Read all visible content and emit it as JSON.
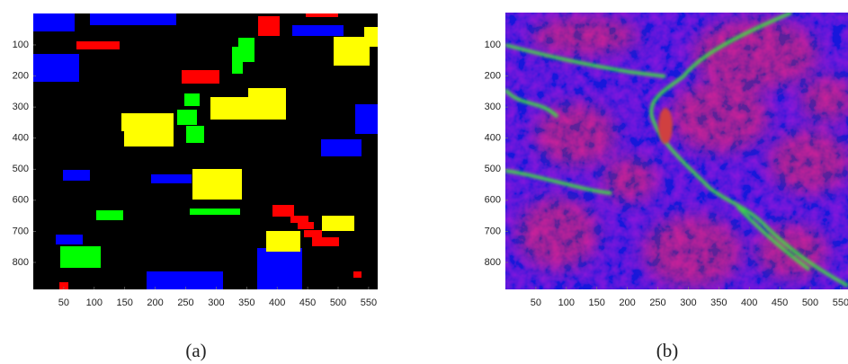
{
  "chart_data": [
    {
      "type": "image",
      "label": "(a)",
      "xlim": [
        0,
        565
      ],
      "ylim": [
        0,
        887
      ],
      "xticks": [
        50,
        100,
        150,
        200,
        250,
        300,
        350,
        400,
        450,
        500,
        550
      ],
      "yticks": [
        100,
        200,
        300,
        400,
        500,
        600,
        700,
        800
      ]
    },
    {
      "type": "image",
      "label": "(b)",
      "xlim": [
        0,
        565
      ],
      "ylim": [
        0,
        887
      ],
      "xticks": [
        50,
        100,
        150,
        200,
        250,
        300,
        350,
        400,
        450,
        500,
        550
      ],
      "yticks": [
        100,
        200,
        300,
        400,
        500,
        600,
        700,
        800
      ]
    }
  ]
}
